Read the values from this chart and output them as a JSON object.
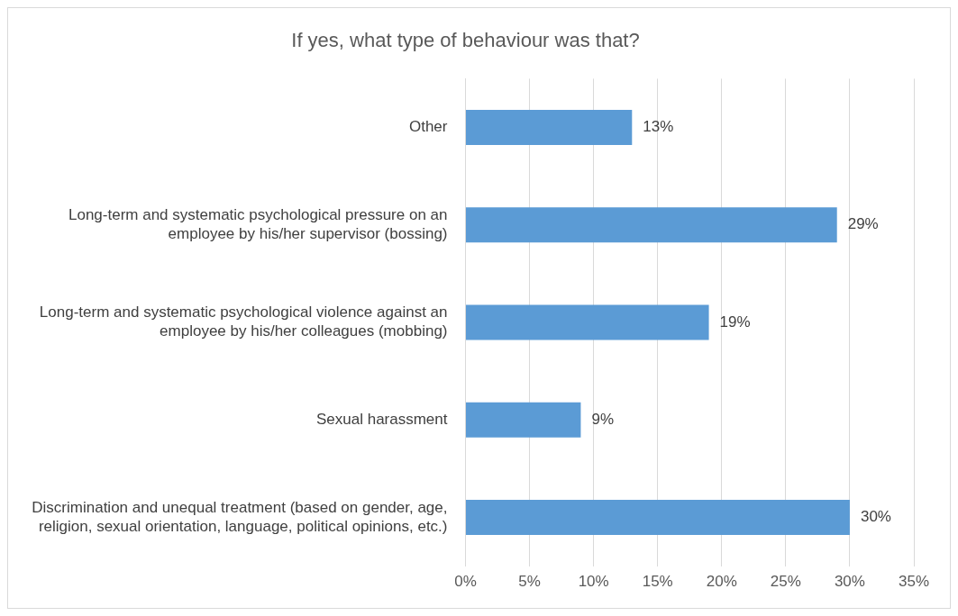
{
  "chart_data": {
    "type": "bar",
    "orientation": "horizontal",
    "title": "If yes, what type of behaviour was that?",
    "categories": [
      "Other",
      "Long-term and systematic psychological pressure on an employee by his/her supervisor (bossing)",
      "Long-term and systematic psychological violence against an employee by his/her colleagues (mobbing)",
      "Sexual harassment",
      "Discrimination and unequal treatment (based on gender, age, religion, sexual orientation, language, political opinions, etc.)"
    ],
    "values": [
      13,
      29,
      19,
      9,
      30
    ],
    "value_labels": [
      "13%",
      "29%",
      "19%",
      "9%",
      "30%"
    ],
    "color": "#5b9bd5",
    "xlim": [
      0,
      35
    ],
    "xticks": [
      {
        "value": 0,
        "label": "0%"
      },
      {
        "value": 5,
        "label": "5%"
      },
      {
        "value": 10,
        "label": "10%"
      },
      {
        "value": 15,
        "label": "15%"
      },
      {
        "value": 20,
        "label": "20%"
      },
      {
        "value": 25,
        "label": "25%"
      },
      {
        "value": 30,
        "label": "30%"
      },
      {
        "value": 35,
        "label": "35%"
      }
    ],
    "grid": "x",
    "legend": false
  }
}
